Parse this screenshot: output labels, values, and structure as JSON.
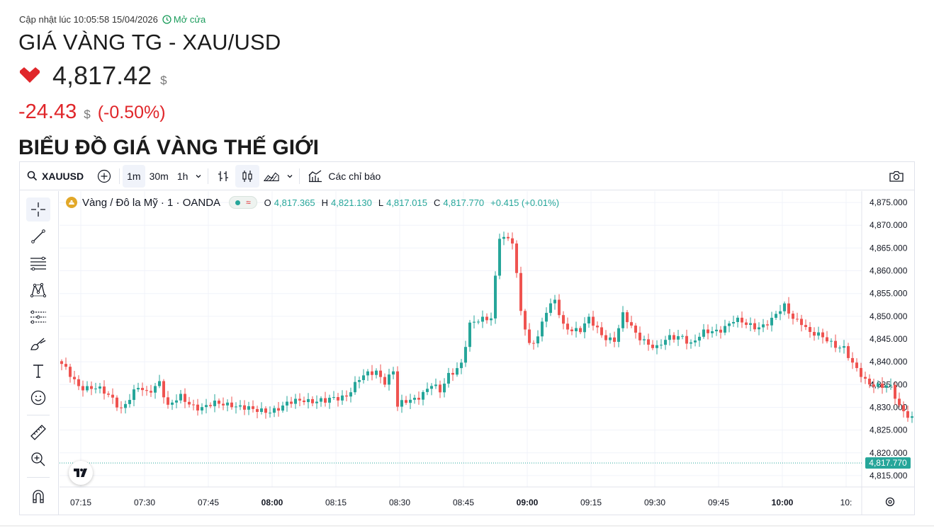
{
  "header": {
    "updated_label": "Cập nhật lúc 10:05:58 15/04/2026",
    "open_status": "Mở cửa",
    "title": "GIÁ VÀNG TG - XAU/USD",
    "price": "4,817.42",
    "price_unit": "$",
    "change": "-24.43",
    "change_unit": "$",
    "change_pct": "(-0.50%)",
    "section_title": "BIỂU ĐỒ GIÁ VÀNG THẾ GIỚI",
    "down_color": "#e0262a"
  },
  "toolbar": {
    "symbol": "XAUUSD",
    "intervals": [
      "1m",
      "30m",
      "1h"
    ],
    "active_interval": "1m",
    "indicators_label": "Các chỉ báo"
  },
  "sidebar": {
    "tools": [
      "crosshair-icon",
      "trend-line-icon",
      "fib-levels-icon",
      "pattern-icon",
      "projection-icon",
      "brush-icon",
      "text-icon",
      "emoji-icon",
      "ruler-icon",
      "zoom-in-icon",
      "magnet-icon"
    ]
  },
  "legend": {
    "name": "Vàng / Đô la Mỹ · 1 · OANDA",
    "o_label": "O",
    "o_value": "4,817.365",
    "h_label": "H",
    "h_value": "4,821.130",
    "l_label": "L",
    "l_value": "4,817.015",
    "c_label": "C",
    "c_value": "4,817.770",
    "change": "+0.415 (+0.01%)"
  },
  "chart_data": {
    "type": "candlestick",
    "interval": "1m",
    "x_start": "07:10",
    "x_ticks": [
      "07:15",
      "07:30",
      "07:45",
      "08:00",
      "08:15",
      "08:30",
      "08:45",
      "09:00",
      "09:15",
      "09:30",
      "09:45",
      "10:00",
      "10:"
    ],
    "bold_ticks": [
      "08:00",
      "09:00",
      "10:00"
    ],
    "y_ticks": [
      "4,875.000",
      "4,870.000",
      "4,865.000",
      "4,860.000",
      "4,855.000",
      "4,850.000",
      "4,845.000",
      "4,840.000",
      "4,835.000",
      "4,830.000",
      "4,825.000",
      "4,820.000",
      "4,815.000"
    ],
    "ylim": [
      4812.5,
      4877.5
    ],
    "last_price": 4817.77,
    "last_price_label": "4,817.770",
    "up_color": "#26a69a",
    "down_color": "#ef5350",
    "close_path": [
      [
        0,
        4839
      ],
      [
        4,
        4835
      ],
      [
        8,
        4834
      ],
      [
        12,
        4832
      ],
      [
        14,
        4830
      ],
      [
        18,
        4834
      ],
      [
        20,
        4833
      ],
      [
        23,
        4836
      ],
      [
        25,
        4830
      ],
      [
        28,
        4832
      ],
      [
        30,
        4831
      ],
      [
        33,
        4830
      ],
      [
        40,
        4831
      ],
      [
        45,
        4829
      ],
      [
        52,
        4830
      ],
      [
        57,
        4832
      ],
      [
        62,
        4831
      ],
      [
        67,
        4833
      ],
      [
        70,
        4836
      ],
      [
        74,
        4838
      ],
      [
        76,
        4836
      ],
      [
        78,
        4838
      ],
      [
        79,
        4830
      ],
      [
        83,
        4832
      ],
      [
        87,
        4835
      ],
      [
        89,
        4833
      ],
      [
        91,
        4837
      ],
      [
        94,
        4840
      ],
      [
        96,
        4848
      ],
      [
        99,
        4849
      ],
      [
        101,
        4850
      ],
      [
        103,
        4868
      ],
      [
        106,
        4866
      ],
      [
        108,
        4851
      ],
      [
        110,
        4844
      ],
      [
        112,
        4846
      ],
      [
        114,
        4851
      ],
      [
        116,
        4853
      ],
      [
        118,
        4848
      ],
      [
        122,
        4847
      ],
      [
        124,
        4849
      ],
      [
        127,
        4846
      ],
      [
        130,
        4845
      ],
      [
        132,
        4850
      ],
      [
        135,
        4846
      ],
      [
        137,
        4845
      ],
      [
        140,
        4843
      ],
      [
        143,
        4845
      ],
      [
        146,
        4846
      ],
      [
        148,
        4844
      ],
      [
        151,
        4846
      ],
      [
        154,
        4847
      ],
      [
        158,
        4849
      ],
      [
        161,
        4848
      ],
      [
        164,
        4848
      ],
      [
        167,
        4849
      ],
      [
        170,
        4852
      ],
      [
        172,
        4850
      ],
      [
        174,
        4849
      ],
      [
        176,
        4846
      ],
      [
        180,
        4845
      ],
      [
        182,
        4844
      ],
      [
        184,
        4843
      ],
      [
        186,
        4839
      ],
      [
        189,
        4836
      ],
      [
        192,
        4835
      ],
      [
        195,
        4834
      ],
      [
        197,
        4830
      ],
      [
        200,
        4828
      ],
      [
        202,
        4826
      ],
      [
        204,
        4822
      ],
      [
        206,
        4825
      ],
      [
        208,
        4829
      ],
      [
        212,
        4829
      ],
      [
        215,
        4827
      ],
      [
        218,
        4828
      ],
      [
        220,
        4828
      ],
      [
        222,
        4826
      ],
      [
        225,
        4825
      ],
      [
        227,
        4822
      ],
      [
        230,
        4821
      ],
      [
        232,
        4825
      ],
      [
        234,
        4823
      ],
      [
        236,
        4821
      ],
      [
        238,
        4819
      ],
      [
        240,
        4817.77
      ]
    ]
  }
}
